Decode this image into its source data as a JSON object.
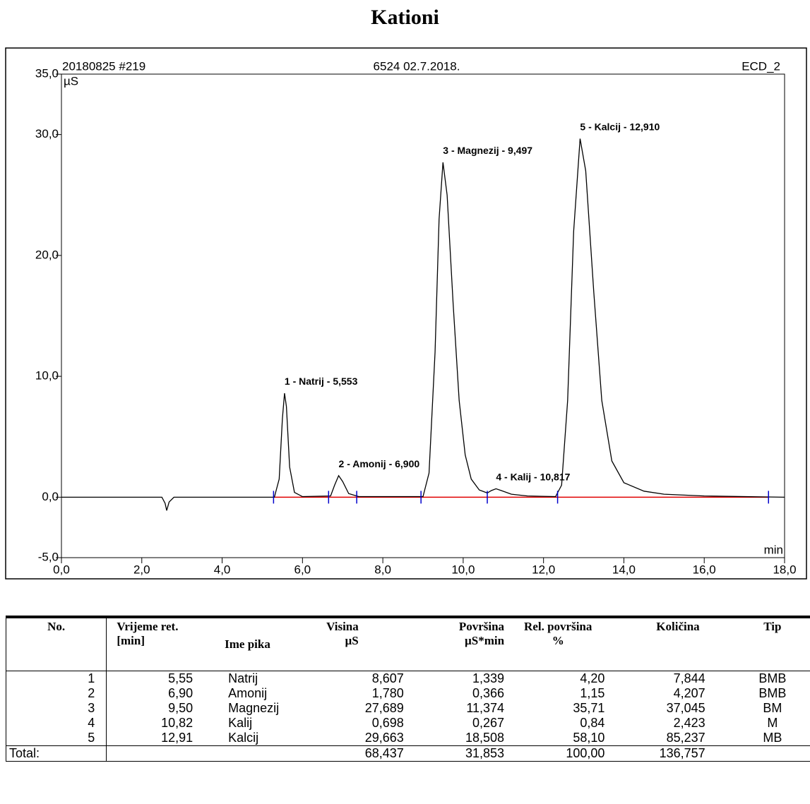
{
  "title": "Kationi",
  "chart_data": {
    "type": "line",
    "header": [
      "20180825 #219",
      "6524 02.7.2018.",
      "ECD_2"
    ],
    "y_label": "µS",
    "x_label": "min",
    "xlim": [
      0,
      18
    ],
    "xticks": [
      {
        "value": 0,
        "label": "0,0"
      },
      {
        "value": 2,
        "label": "2,0"
      },
      {
        "value": 4,
        "label": "4,0"
      },
      {
        "value": 6,
        "label": "6,0"
      },
      {
        "value": 8,
        "label": "8,0"
      },
      {
        "value": 10,
        "label": "10,0"
      },
      {
        "value": 12,
        "label": "12,0"
      },
      {
        "value": 14,
        "label": "14,0"
      },
      {
        "value": 16,
        "label": "16,0"
      },
      {
        "value": 18,
        "label": "18,0"
      }
    ],
    "ylim": [
      -5,
      35
    ],
    "yticks": [
      {
        "value": -5,
        "label": "-5,0"
      },
      {
        "value": 0,
        "label": "0,0"
      },
      {
        "value": 10,
        "label": "10,0"
      },
      {
        "value": 20,
        "label": "20,0"
      },
      {
        "value": 30,
        "label": "30,0"
      },
      {
        "value": 35,
        "label": "35,0"
      }
    ],
    "series": [
      {
        "name": "ECD_2",
        "color": "#000000",
        "x": [
          0,
          2.5,
          2.58,
          2.62,
          2.68,
          2.8,
          5.3,
          5.42,
          5.5,
          5.553,
          5.6,
          5.68,
          5.8,
          6.0,
          6.7,
          6.8,
          6.9,
          7.0,
          7.15,
          7.4,
          9.0,
          9.15,
          9.3,
          9.4,
          9.497,
          9.6,
          9.75,
          9.9,
          10.05,
          10.2,
          10.4,
          10.6,
          10.7,
          10.817,
          10.95,
          11.2,
          11.6,
          12.3,
          12.45,
          12.6,
          12.75,
          12.91,
          13.05,
          13.25,
          13.45,
          13.7,
          14.0,
          14.5,
          15.0,
          16.0,
          18.0
        ],
        "values": [
          0,
          0,
          -0.5,
          -1.1,
          -0.4,
          0,
          0,
          1.5,
          6.5,
          8.6,
          7.5,
          2.5,
          0.4,
          0.05,
          0.1,
          1.0,
          1.78,
          1.3,
          0.3,
          0.05,
          0.05,
          2,
          12,
          23,
          27.7,
          25,
          16,
          8,
          3.5,
          1.5,
          0.6,
          0.35,
          0.55,
          0.7,
          0.55,
          0.25,
          0.1,
          0.05,
          1,
          8,
          22,
          29.66,
          27,
          17,
          8,
          3,
          1.2,
          0.5,
          0.25,
          0.1,
          0
        ]
      }
    ],
    "baseline": {
      "color": "#e00000",
      "x": [
        5.28,
        17.6
      ]
    },
    "delimiters": {
      "color": "#0000cc",
      "x": [
        5.28,
        6.65,
        7.35,
        8.95,
        10.6,
        12.35,
        17.6
      ]
    },
    "annotations": [
      {
        "text": "1 - Natrij - 5,553",
        "x": 5.553,
        "y": 8.6
      },
      {
        "text": "2 - Amonij - 6,900",
        "x": 6.9,
        "y": 1.78
      },
      {
        "text": "3 - Magnezij - 9,497",
        "x": 9.497,
        "y": 27.7
      },
      {
        "text": "4 - Kalij - 10,817",
        "x": 10.817,
        "y": 0.7
      },
      {
        "text": "5 - Kalcij - 12,910",
        "x": 12.91,
        "y": 29.66
      }
    ]
  },
  "table": {
    "header": [
      "No.",
      "Vrijeme ret.\n[min]",
      "Ime pika",
      "Visina\nµS",
      "Površina\nµS*min",
      "Rel. površina\n%",
      "Količina",
      "Tip"
    ],
    "rows": [
      [
        "1",
        "5,55",
        "Natrij",
        "8,607",
        "1,339",
        "4,20",
        "7,844",
        "BMB"
      ],
      [
        "2",
        "6,90",
        "Amonij",
        "1,780",
        "0,366",
        "1,15",
        "4,207",
        "BMB"
      ],
      [
        "3",
        "9,50",
        "Magnezij",
        "27,689",
        "11,374",
        "35,71",
        "37,045",
        "BM"
      ],
      [
        "4",
        "10,82",
        "Kalij",
        "0,698",
        "0,267",
        "0,84",
        "2,423",
        "M"
      ],
      [
        "5",
        "12,91",
        "Kalcij",
        "29,663",
        "18,508",
        "58,10",
        "85,237",
        "MB"
      ]
    ],
    "total": {
      "label": "Total:",
      "values": [
        "68,437",
        "31,853",
        "100,00",
        "136,757"
      ]
    }
  }
}
